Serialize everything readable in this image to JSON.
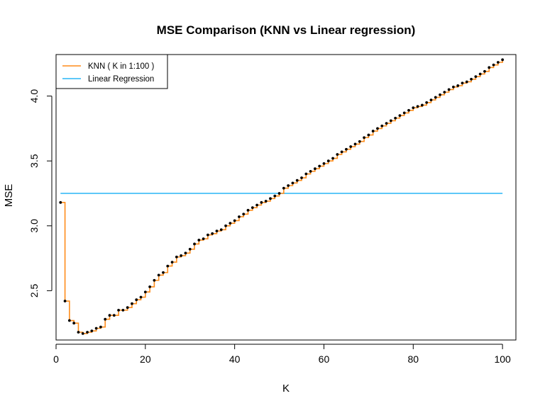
{
  "chart_data": {
    "type": "line",
    "title": "MSE Comparison (KNN vs Linear regression)",
    "xlabel": "K",
    "ylabel": "MSE",
    "xlim": [
      0,
      103
    ],
    "ylim": [
      2.12,
      4.32
    ],
    "xticks": [
      0,
      20,
      40,
      60,
      80,
      100
    ],
    "yticks": [
      2.5,
      3.0,
      3.5,
      4.0
    ],
    "xtick_labels": [
      "0",
      "20",
      "40",
      "60",
      "80",
      "100"
    ],
    "ytick_labels": [
      "2.5",
      "3.0",
      "3.5",
      "4.0"
    ],
    "grid": false,
    "legend_position": "top-left",
    "series": [
      {
        "name": "KNN ( K in 1:100 )",
        "style": "step-with-points",
        "color": "#FF8C1A",
        "point_color": "#000000",
        "x": [
          1,
          2,
          3,
          4,
          5,
          6,
          7,
          8,
          9,
          10,
          11,
          12,
          13,
          14,
          15,
          16,
          17,
          18,
          19,
          20,
          21,
          22,
          23,
          24,
          25,
          26,
          27,
          28,
          29,
          30,
          31,
          32,
          33,
          34,
          35,
          36,
          37,
          38,
          39,
          40,
          41,
          42,
          43,
          44,
          45,
          46,
          47,
          48,
          49,
          50,
          51,
          52,
          53,
          54,
          55,
          56,
          57,
          58,
          59,
          60,
          61,
          62,
          63,
          64,
          65,
          66,
          67,
          68,
          69,
          70,
          71,
          72,
          73,
          74,
          75,
          76,
          77,
          78,
          79,
          80,
          81,
          82,
          83,
          84,
          85,
          86,
          87,
          88,
          89,
          90,
          91,
          92,
          93,
          94,
          95,
          96,
          97,
          98,
          99,
          100
        ],
        "values": [
          3.18,
          2.42,
          2.27,
          2.25,
          2.18,
          2.17,
          2.18,
          2.19,
          2.21,
          2.22,
          2.28,
          2.31,
          2.31,
          2.35,
          2.35,
          2.37,
          2.4,
          2.43,
          2.45,
          2.49,
          2.53,
          2.58,
          2.62,
          2.64,
          2.69,
          2.72,
          2.76,
          2.77,
          2.79,
          2.82,
          2.86,
          2.89,
          2.9,
          2.93,
          2.94,
          2.96,
          2.97,
          3.0,
          3.02,
          3.04,
          3.07,
          3.09,
          3.12,
          3.14,
          3.16,
          3.18,
          3.19,
          3.21,
          3.23,
          3.25,
          3.29,
          3.31,
          3.33,
          3.35,
          3.37,
          3.4,
          3.42,
          3.44,
          3.46,
          3.48,
          3.5,
          3.52,
          3.55,
          3.57,
          3.59,
          3.61,
          3.63,
          3.65,
          3.68,
          3.7,
          3.73,
          3.75,
          3.77,
          3.79,
          3.81,
          3.83,
          3.85,
          3.87,
          3.89,
          3.91,
          3.92,
          3.93,
          3.95,
          3.97,
          3.99,
          4.01,
          4.03,
          4.05,
          4.07,
          4.08,
          4.1,
          4.11,
          4.13,
          4.15,
          4.17,
          4.19,
          4.22,
          4.24,
          4.26,
          4.28
        ]
      },
      {
        "name": "Linear Regression",
        "style": "line",
        "color": "#29B6F6",
        "x": [
          1,
          100
        ],
        "values": [
          3.25,
          3.25
        ]
      }
    ]
  }
}
